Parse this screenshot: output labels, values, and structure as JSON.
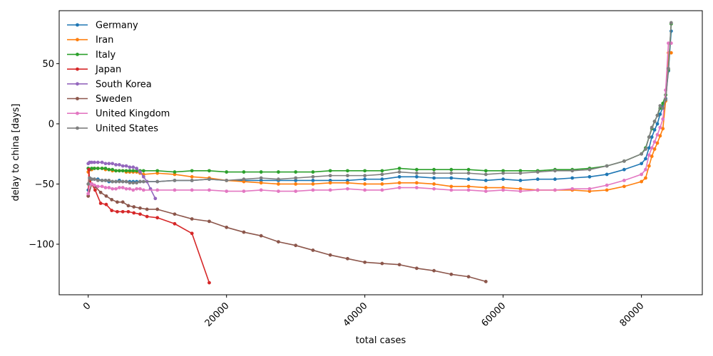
{
  "chart_data": {
    "type": "line",
    "title": "",
    "xlabel": "total cases",
    "ylabel": "delay to china [days]",
    "xlim": [
      -4200,
      88800
    ],
    "ylim": [
      -142,
      94
    ],
    "xticks": [
      0,
      20000,
      40000,
      60000,
      80000
    ],
    "xtick_labels": [
      "0",
      "20000",
      "40000",
      "60000",
      "80000"
    ],
    "yticks": [
      50,
      0,
      -50,
      -100
    ],
    "ytick_labels": [
      "50",
      "0",
      "−50",
      "−100"
    ],
    "grid": false,
    "legend": {
      "placement": "top-left"
    },
    "series": [
      {
        "name": "Germany",
        "color": "#1f77b4",
        "x": [
          0,
          200,
          500,
          900,
          1400,
          2000,
          2500,
          3000,
          3500,
          4000,
          4500,
          5000,
          5500,
          6000,
          6500,
          7000,
          7500,
          8000,
          10000,
          12500,
          15000,
          17500,
          20000,
          22500,
          25000,
          27500,
          30000,
          32500,
          35000,
          37500,
          40000,
          42500,
          45000,
          47500,
          50000,
          52500,
          55000,
          57500,
          60000,
          62500,
          65000,
          67500,
          70000,
          72500,
          75000,
          77500,
          80000,
          80600,
          81100,
          81500,
          81900,
          82300,
          82700,
          83100,
          83500,
          83900,
          84300
        ],
        "y": [
          -55,
          -45,
          -46,
          -46,
          -46,
          -47,
          -47,
          -48,
          -48,
          -48,
          -47,
          -48,
          -48,
          -48,
          -48,
          -48,
          -48,
          -48,
          -48,
          -47,
          -47,
          -46,
          -47,
          -47,
          -47,
          -47,
          -47,
          -47,
          -47,
          -47,
          -46,
          -46,
          -44,
          -44,
          -45,
          -45,
          -46,
          -47,
          -46,
          -47,
          -46,
          -46,
          -45,
          -44,
          -42,
          -38,
          -33,
          -29,
          -20,
          -11,
          -5,
          0,
          8,
          14,
          21,
          44,
          77
        ]
      },
      {
        "name": "Iran",
        "color": "#ff7f0e",
        "x": [
          0,
          200,
          500,
          900,
          1400,
          2000,
          2500,
          3000,
          3500,
          4000,
          4500,
          5000,
          5500,
          6000,
          6500,
          7000,
          7500,
          8000,
          10000,
          12500,
          15000,
          17500,
          20000,
          22500,
          25000,
          27500,
          30000,
          32500,
          35000,
          37500,
          40000,
          42500,
          45000,
          47500,
          50000,
          52500,
          55000,
          57500,
          60000,
          62500,
          65000,
          67500,
          70000,
          72500,
          75000,
          77500,
          80000,
          80600,
          81100,
          81500,
          81900,
          82300,
          82700,
          83100,
          83500,
          83900,
          84300
        ],
        "y": [
          -40,
          -38,
          -38,
          -37,
          -37,
          -37,
          -38,
          -38,
          -39,
          -39,
          -39,
          -39,
          -40,
          -40,
          -40,
          -40,
          -41,
          -42,
          -41,
          -42,
          -44,
          -45,
          -47,
          -48,
          -49,
          -50,
          -50,
          -50,
          -49,
          -49,
          -50,
          -50,
          -49,
          -49,
          -50,
          -52,
          -52,
          -53,
          -53,
          -54,
          -55,
          -55,
          -55,
          -56,
          -55,
          -52,
          -48,
          -45,
          -35,
          -27,
          -21,
          -16,
          -10,
          -4,
          19,
          59,
          59
        ]
      },
      {
        "name": "Italy",
        "color": "#2ca02c",
        "x": [
          0,
          200,
          500,
          900,
          1400,
          2000,
          2500,
          3000,
          3500,
          4000,
          4500,
          5000,
          5500,
          6000,
          6500,
          7000,
          7500,
          8000,
          10000,
          12500,
          15000,
          17500,
          20000,
          22500,
          25000,
          27500,
          30000,
          32500,
          35000,
          37500,
          40000,
          42500,
          45000,
          47500,
          50000,
          52500,
          55000,
          57500,
          60000,
          62500,
          65000,
          67500,
          70000,
          72500,
          75000,
          77500,
          80000,
          80600,
          81100,
          81500,
          81900,
          82300,
          82700,
          83100,
          83500,
          83900,
          84300
        ],
        "y": [
          -37,
          -38,
          -37,
          -37,
          -37,
          -37,
          -37,
          -38,
          -38,
          -39,
          -39,
          -39,
          -39,
          -39,
          -39,
          -39,
          -39,
          -39,
          -39,
          -40,
          -39,
          -39,
          -40,
          -40,
          -40,
          -40,
          -40,
          -40,
          -39,
          -39,
          -39,
          -39,
          -37,
          -38,
          -38,
          -38,
          -38,
          -39,
          -39,
          -39,
          -39,
          -38,
          -38,
          -37,
          -35,
          -31,
          -25,
          -20,
          -11,
          -4,
          2,
          7,
          13,
          17,
          24,
          45,
          83
        ]
      },
      {
        "name": "Japan",
        "color": "#d62728",
        "x": [
          0,
          100,
          200,
          500,
          1000,
          1800,
          2600,
          3400,
          4200,
          5000,
          5800,
          6600,
          7500,
          8500,
          10000,
          12500,
          15000,
          17500
        ],
        "y": [
          -60,
          -38,
          -48,
          -50,
          -55,
          -66,
          -67,
          -72,
          -73,
          -73,
          -73,
          -74,
          -75,
          -77,
          -78,
          -83,
          -91,
          -132
        ]
      },
      {
        "name": "South Korea",
        "color": "#9467bd",
        "x": [
          0,
          200,
          500,
          900,
          1400,
          2000,
          2500,
          3000,
          3500,
          4000,
          4500,
          5000,
          5500,
          6000,
          6500,
          7000,
          7500,
          8000,
          8500,
          9000,
          9700
        ],
        "y": [
          -33,
          -32,
          -32,
          -32,
          -32,
          -32,
          -33,
          -33,
          -33,
          -34,
          -34,
          -35,
          -35,
          -36,
          -36,
          -37,
          -40,
          -44,
          -48,
          -54,
          -62
        ]
      },
      {
        "name": "Sweden",
        "color": "#8c564b",
        "x": [
          0,
          500,
          1000,
          1800,
          2600,
          3400,
          4200,
          5000,
          5800,
          6600,
          7500,
          8500,
          10000,
          12500,
          15000,
          17500,
          20000,
          22500,
          25000,
          27500,
          30000,
          32500,
          35000,
          37500,
          40000,
          42500,
          45000,
          47500,
          50000,
          52500,
          55000,
          57500
        ],
        "y": [
          -60,
          -50,
          -52,
          -57,
          -60,
          -63,
          -65,
          -65,
          -68,
          -69,
          -70,
          -71,
          -71,
          -75,
          -79,
          -81,
          -86,
          -90,
          -93,
          -98,
          -101,
          -105,
          -109,
          -112,
          -115,
          -116,
          -117,
          -120,
          -122,
          -125,
          -127,
          -131
        ]
      },
      {
        "name": "United Kingdom",
        "color": "#e377c2",
        "x": [
          0,
          200,
          500,
          900,
          1400,
          2000,
          2500,
          3000,
          3500,
          4000,
          4500,
          5000,
          5500,
          6000,
          6500,
          7000,
          7500,
          8000,
          10000,
          12500,
          15000,
          17500,
          20000,
          22500,
          25000,
          27500,
          30000,
          32500,
          35000,
          37500,
          40000,
          42500,
          45000,
          47500,
          50000,
          52500,
          55000,
          57500,
          60000,
          62500,
          65000,
          67500,
          70000,
          72500,
          75000,
          77500,
          80000,
          80600,
          81100,
          81500,
          81900,
          82300,
          82700,
          83100,
          83500,
          83900,
          84300
        ],
        "y": [
          -58,
          -50,
          -50,
          -51,
          -52,
          -52,
          -53,
          -53,
          -54,
          -54,
          -53,
          -53,
          -54,
          -54,
          -55,
          -54,
          -54,
          -55,
          -55,
          -55,
          -55,
          -55,
          -56,
          -56,
          -55,
          -56,
          -56,
          -55,
          -55,
          -54,
          -55,
          -55,
          -53,
          -53,
          -54,
          -55,
          -55,
          -56,
          -55,
          -56,
          -55,
          -55,
          -54,
          -54,
          -51,
          -47,
          -42,
          -38,
          -26,
          -20,
          -15,
          -9,
          -3,
          4,
          28,
          67,
          67
        ]
      },
      {
        "name": "United States",
        "color": "#7f7f7f",
        "x": [
          0,
          200,
          500,
          900,
          1400,
          2000,
          2500,
          3000,
          3500,
          4000,
          4500,
          5000,
          5500,
          6000,
          6500,
          7000,
          7500,
          8000,
          10000,
          12500,
          15000,
          17500,
          20000,
          22500,
          25000,
          27500,
          30000,
          32500,
          35000,
          37500,
          40000,
          42500,
          45000,
          47500,
          50000,
          52500,
          55000,
          57500,
          60000,
          62500,
          65000,
          67500,
          70000,
          72500,
          75000,
          77500,
          80000,
          80600,
          81100,
          81500,
          81900,
          82300,
          82700,
          83100,
          83500,
          83900,
          84300
        ],
        "y": [
          -50,
          -45,
          -46,
          -46,
          -47,
          -47,
          -47,
          -47,
          -48,
          -48,
          -48,
          -48,
          -48,
          -49,
          -49,
          -49,
          -48,
          -48,
          -48,
          -47,
          -47,
          -46,
          -47,
          -46,
          -45,
          -46,
          -45,
          -44,
          -43,
          -43,
          -43,
          -42,
          -40,
          -41,
          -41,
          -41,
          -41,
          -42,
          -41,
          -41,
          -40,
          -39,
          -39,
          -38,
          -35,
          -31,
          -25,
          -21,
          -11,
          -3,
          2,
          7,
          15,
          13,
          20,
          46,
          84
        ]
      }
    ]
  }
}
